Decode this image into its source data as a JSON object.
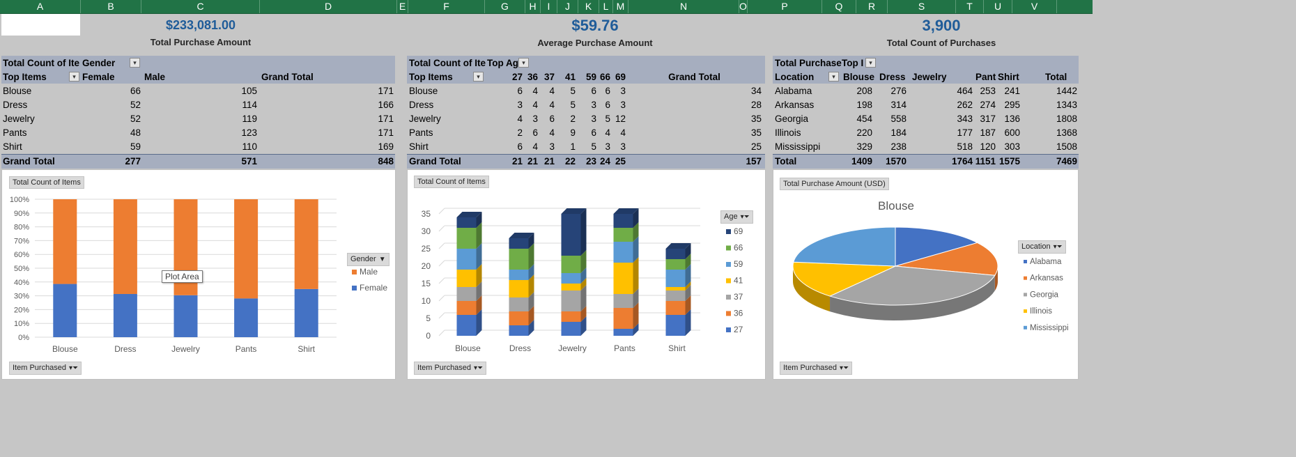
{
  "columns": [
    "A",
    "B",
    "C",
    "D",
    "E",
    "F",
    "G",
    "H",
    "I",
    "J",
    "K",
    "L",
    "M",
    "N",
    "O",
    "P",
    "Q",
    "R",
    "S",
    "T",
    "U",
    "V"
  ],
  "kpis": [
    {
      "value": "$233,081.00",
      "label": "Total Purchase Amount"
    },
    {
      "value": "$59.76",
      "label": "Average Purchase Amount"
    },
    {
      "value": "3,900",
      "label": "Total Count of Purchases"
    }
  ],
  "pivot1": {
    "title": "Total Count of Ite",
    "col_field": "Gender",
    "row_field": "Top Items",
    "headers": [
      "Female",
      "Male",
      "Grand Total"
    ],
    "rows": [
      {
        "label": "Blouse",
        "values": [
          "66",
          "105",
          "171"
        ]
      },
      {
        "label": "Dress",
        "values": [
          "52",
          "114",
          "166"
        ]
      },
      {
        "label": "Jewelry",
        "values": [
          "52",
          "119",
          "171"
        ]
      },
      {
        "label": "Pants",
        "values": [
          "48",
          "123",
          "171"
        ]
      },
      {
        "label": "Shirt",
        "values": [
          "59",
          "110",
          "169"
        ]
      }
    ],
    "total": {
      "label": "Grand Total",
      "values": [
        "277",
        "571",
        "848"
      ]
    }
  },
  "pivot2": {
    "title": "Total Count of Ite",
    "col_field": "Top Ag",
    "row_field": "Top Items",
    "headers": [
      "27",
      "36",
      "37",
      "41",
      "59",
      "66",
      "69",
      "Grand Total"
    ],
    "rows": [
      {
        "label": "Blouse",
        "values": [
          "6",
          "4",
          "4",
          "5",
          "6",
          "6",
          "3",
          "34"
        ]
      },
      {
        "label": "Dress",
        "values": [
          "3",
          "4",
          "4",
          "5",
          "3",
          "6",
          "3",
          "28"
        ]
      },
      {
        "label": "Jewelry",
        "values": [
          "4",
          "3",
          "6",
          "2",
          "3",
          "5",
          "12",
          "35"
        ]
      },
      {
        "label": "Pants",
        "values": [
          "2",
          "6",
          "4",
          "9",
          "6",
          "4",
          "4",
          "35"
        ]
      },
      {
        "label": "Shirt",
        "values": [
          "6",
          "4",
          "3",
          "1",
          "5",
          "3",
          "3",
          "25"
        ]
      }
    ],
    "total": {
      "label": "Grand Total",
      "values": [
        "21",
        "21",
        "21",
        "22",
        "23",
        "24",
        "25",
        "157"
      ]
    }
  },
  "pivot3": {
    "title": "Total Purchase",
    "col_field": "Top I",
    "row_field": "Location",
    "headers": [
      "Blouse",
      "Dress",
      "Jewelry",
      "Pants",
      "Shirt",
      "Total"
    ],
    "rows": [
      {
        "label": "Alabama",
        "values": [
          "208",
          "276",
          "464",
          "253",
          "241",
          "1442"
        ]
      },
      {
        "label": "Arkansas",
        "values": [
          "198",
          "314",
          "262",
          "274",
          "295",
          "1343"
        ]
      },
      {
        "label": "Georgia",
        "values": [
          "454",
          "558",
          "343",
          "317",
          "136",
          "1808"
        ]
      },
      {
        "label": "Illinois",
        "values": [
          "220",
          "184",
          "177",
          "187",
          "600",
          "1368"
        ]
      },
      {
        "label": "Mississippi",
        "values": [
          "329",
          "238",
          "518",
          "120",
          "303",
          "1508"
        ]
      }
    ],
    "total": {
      "label": "Total",
      "values": [
        "1409",
        "1570",
        "1764",
        "1151",
        "1575",
        "7469"
      ]
    }
  },
  "chart1_meta": {
    "title_chip": "Total Count of Items",
    "legend_chip": "Gender",
    "axis_chip": "Item Purchased",
    "tooltip": "Plot Area"
  },
  "chart2_meta": {
    "title_chip": "Total Count of Items",
    "legend_chip": "Age",
    "axis_chip": "Item Purchased"
  },
  "chart3_meta": {
    "title_chip": "Total Purchase Amount (USD)",
    "legend_chip": "Location",
    "axis_chip": "Item Purchased"
  },
  "colors": {
    "female": "#4472c4",
    "male": "#ed7d31",
    "age_27": "#4472c4",
    "age_36": "#ed7d31",
    "age_37": "#a5a5a5",
    "age_41": "#ffc000",
    "age_59": "#5b9bd5",
    "age_66": "#70ad47",
    "age_69": "#264478",
    "alabama": "#4472c4",
    "arkansas": "#ed7d31",
    "georgia": "#a5a5a5",
    "illinois": "#ffc000",
    "mississippi": "#5b9bd5"
  },
  "chart_data": [
    {
      "type": "bar",
      "stacked": "percent",
      "categories": [
        "Blouse",
        "Dress",
        "Jewelry",
        "Pants",
        "Shirt"
      ],
      "series": [
        {
          "name": "Female",
          "values": [
            66,
            52,
            52,
            48,
            59
          ]
        },
        {
          "name": "Male",
          "values": [
            105,
            114,
            119,
            123,
            110
          ]
        }
      ],
      "yticks": [
        "0%",
        "10%",
        "20%",
        "30%",
        "40%",
        "50%",
        "60%",
        "70%",
        "80%",
        "90%",
        "100%"
      ],
      "ylim": [
        0,
        100
      ],
      "grid": true,
      "legend": "right"
    },
    {
      "type": "bar",
      "stacked": "absolute",
      "style": "3d",
      "categories": [
        "Blouse",
        "Dress",
        "Jewelry",
        "Pants",
        "Shirt"
      ],
      "series": [
        {
          "name": "27",
          "values": [
            6,
            3,
            4,
            2,
            6
          ]
        },
        {
          "name": "36",
          "values": [
            4,
            4,
            3,
            6,
            4
          ]
        },
        {
          "name": "37",
          "values": [
            4,
            4,
            6,
            4,
            3
          ]
        },
        {
          "name": "41",
          "values": [
            5,
            5,
            2,
            9,
            1
          ]
        },
        {
          "name": "59",
          "values": [
            6,
            3,
            3,
            6,
            5
          ]
        },
        {
          "name": "66",
          "values": [
            6,
            6,
            5,
            4,
            3
          ]
        },
        {
          "name": "69",
          "values": [
            3,
            3,
            12,
            4,
            3
          ]
        }
      ],
      "yticks": [
        "0",
        "5",
        "10",
        "15",
        "20",
        "25",
        "30",
        "35"
      ],
      "ylim": [
        0,
        35
      ],
      "grid": true,
      "legend": "right"
    },
    {
      "type": "pie",
      "style": "3d",
      "title": "Blouse",
      "labels": [
        "Alabama",
        "Arkansas",
        "Georgia",
        "Illinois",
        "Mississippi"
      ],
      "values": [
        208,
        198,
        454,
        220,
        329
      ],
      "legend": "right"
    }
  ]
}
